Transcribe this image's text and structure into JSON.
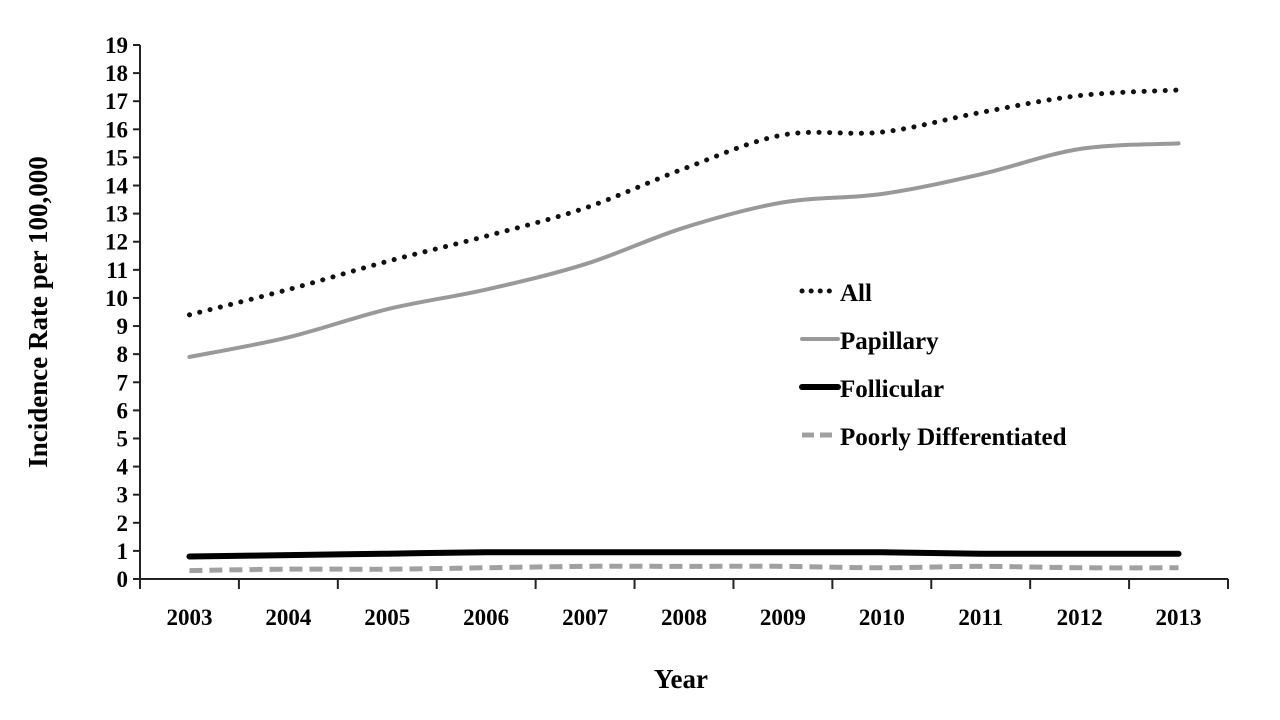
{
  "chart_data": {
    "type": "line",
    "title": "",
    "xlabel": "Year",
    "ylabel": "Incidence Rate per 100,000",
    "ylim": [
      0,
      19
    ],
    "yticks": [
      0,
      1,
      2,
      3,
      4,
      5,
      6,
      7,
      8,
      9,
      10,
      11,
      12,
      13,
      14,
      15,
      16,
      17,
      18,
      19
    ],
    "grid": false,
    "legend_position": "center-right",
    "categories": [
      "2003",
      "2004",
      "2005",
      "2006",
      "2007",
      "2008",
      "2009",
      "2010",
      "2011",
      "2012",
      "2013"
    ],
    "series": [
      {
        "name": "All",
        "style": "dotted",
        "color": "#111111",
        "values": [
          9.4,
          10.3,
          11.3,
          12.2,
          13.2,
          14.6,
          15.8,
          15.9,
          16.6,
          17.2,
          17.4
        ]
      },
      {
        "name": "Papillary",
        "style": "solid",
        "color": "#999999",
        "values": [
          7.9,
          8.6,
          9.6,
          10.3,
          11.2,
          12.5,
          13.4,
          13.7,
          14.4,
          15.3,
          15.5
        ]
      },
      {
        "name": "Follicular",
        "style": "solid-thick",
        "color": "#000000",
        "values": [
          0.8,
          0.85,
          0.9,
          0.95,
          0.95,
          0.95,
          0.95,
          0.95,
          0.9,
          0.9,
          0.9
        ]
      },
      {
        "name": "Poorly Differentiated",
        "style": "dashed",
        "color": "#a0a0a0",
        "values": [
          0.3,
          0.35,
          0.35,
          0.4,
          0.45,
          0.45,
          0.45,
          0.4,
          0.45,
          0.4,
          0.4
        ]
      }
    ]
  }
}
